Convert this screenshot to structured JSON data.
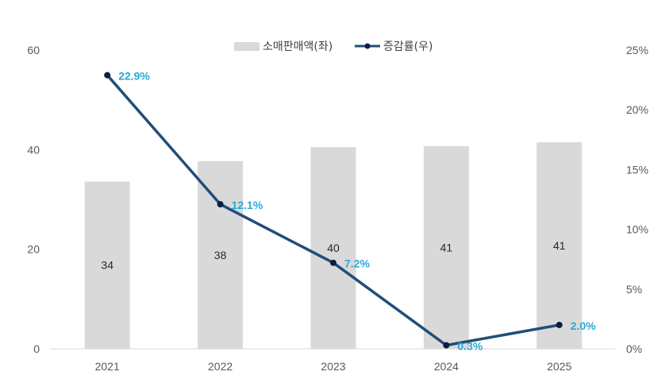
{
  "chart_data": {
    "type": "bar+line",
    "categories": [
      "2021",
      "2022",
      "2023",
      "2024",
      "2025"
    ],
    "series": [
      {
        "name": "소매판매액(좌)",
        "type": "bar",
        "axis": "left",
        "values": [
          33.6,
          37.7,
          40.5,
          40.7,
          41.5
        ],
        "labels": [
          "34",
          "38",
          "40",
          "41",
          "41"
        ],
        "color": "#d9d9d9"
      },
      {
        "name": "증감률(우)",
        "type": "line",
        "axis": "right",
        "values": [
          22.9,
          12.1,
          7.2,
          0.3,
          2.0
        ],
        "labels": [
          "22.9%",
          "12.1%",
          "7.2%",
          "0.3%",
          "2.0%"
        ],
        "color": "#1f4e79",
        "label_color": "#2aa8d6"
      }
    ],
    "y_left": {
      "min": 0,
      "max": 60,
      "ticks": [
        "0",
        "20",
        "40",
        "60"
      ]
    },
    "y_right": {
      "min": 0,
      "max": 25,
      "ticks": [
        "0%",
        "5%",
        "10%",
        "15%",
        "20%",
        "25%"
      ]
    },
    "grid": false,
    "legend": "top-center"
  }
}
